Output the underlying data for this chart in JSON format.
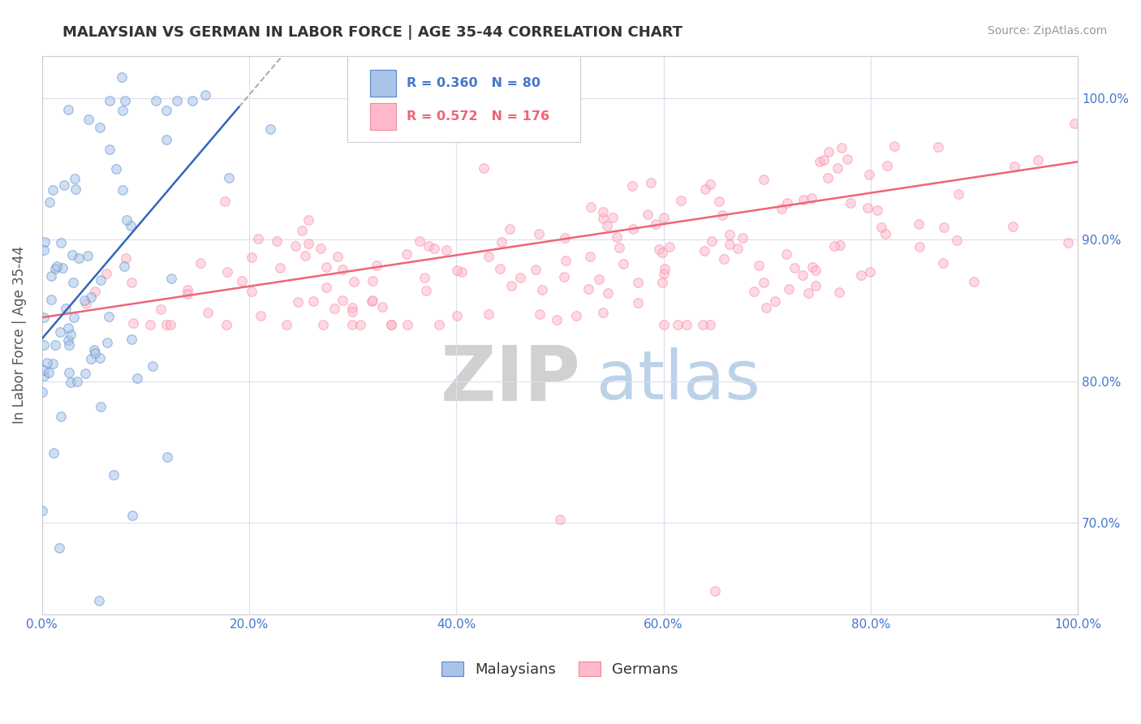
{
  "title": "MALAYSIAN VS GERMAN IN LABOR FORCE | AGE 35-44 CORRELATION CHART",
  "source": "Source: ZipAtlas.com",
  "ylabel": "In Labor Force | Age 35-44",
  "watermark_zip": "ZIP",
  "watermark_atlas": "atlas",
  "xlim": [
    0.0,
    1.0
  ],
  "ylim": [
    0.635,
    1.03
  ],
  "xticks": [
    0.0,
    0.2,
    0.4,
    0.6,
    0.8,
    1.0
  ],
  "xticklabels": [
    "0.0%",
    "20.0%",
    "40.0%",
    "60.0%",
    "80.0%",
    "100.0%"
  ],
  "yticks_right": [
    0.7,
    0.8,
    0.9,
    1.0
  ],
  "ytick_labels_right": [
    "70.0%",
    "80.0%",
    "90.0%",
    "100.0%"
  ],
  "blue_color_face": "#aac4e8",
  "blue_color_edge": "#5588cc",
  "pink_color_face": "#ffb8cc",
  "pink_color_edge": "#ee8899",
  "blue_line_color": "#3366bb",
  "pink_line_color": "#ee6677",
  "grid_color": "#ddddee",
  "scatter_size": 70,
  "scatter_alpha": 0.55,
  "tick_color": "#4477cc",
  "title_fontsize": 13,
  "source_fontsize": 10,
  "legend_R_blue": "R = 0.360",
  "legend_N_blue": "N = 80",
  "legend_R_pink": "R = 0.572",
  "legend_N_pink": "N = 176",
  "legend_label_blue": "Malaysians",
  "legend_label_pink": "Germans"
}
